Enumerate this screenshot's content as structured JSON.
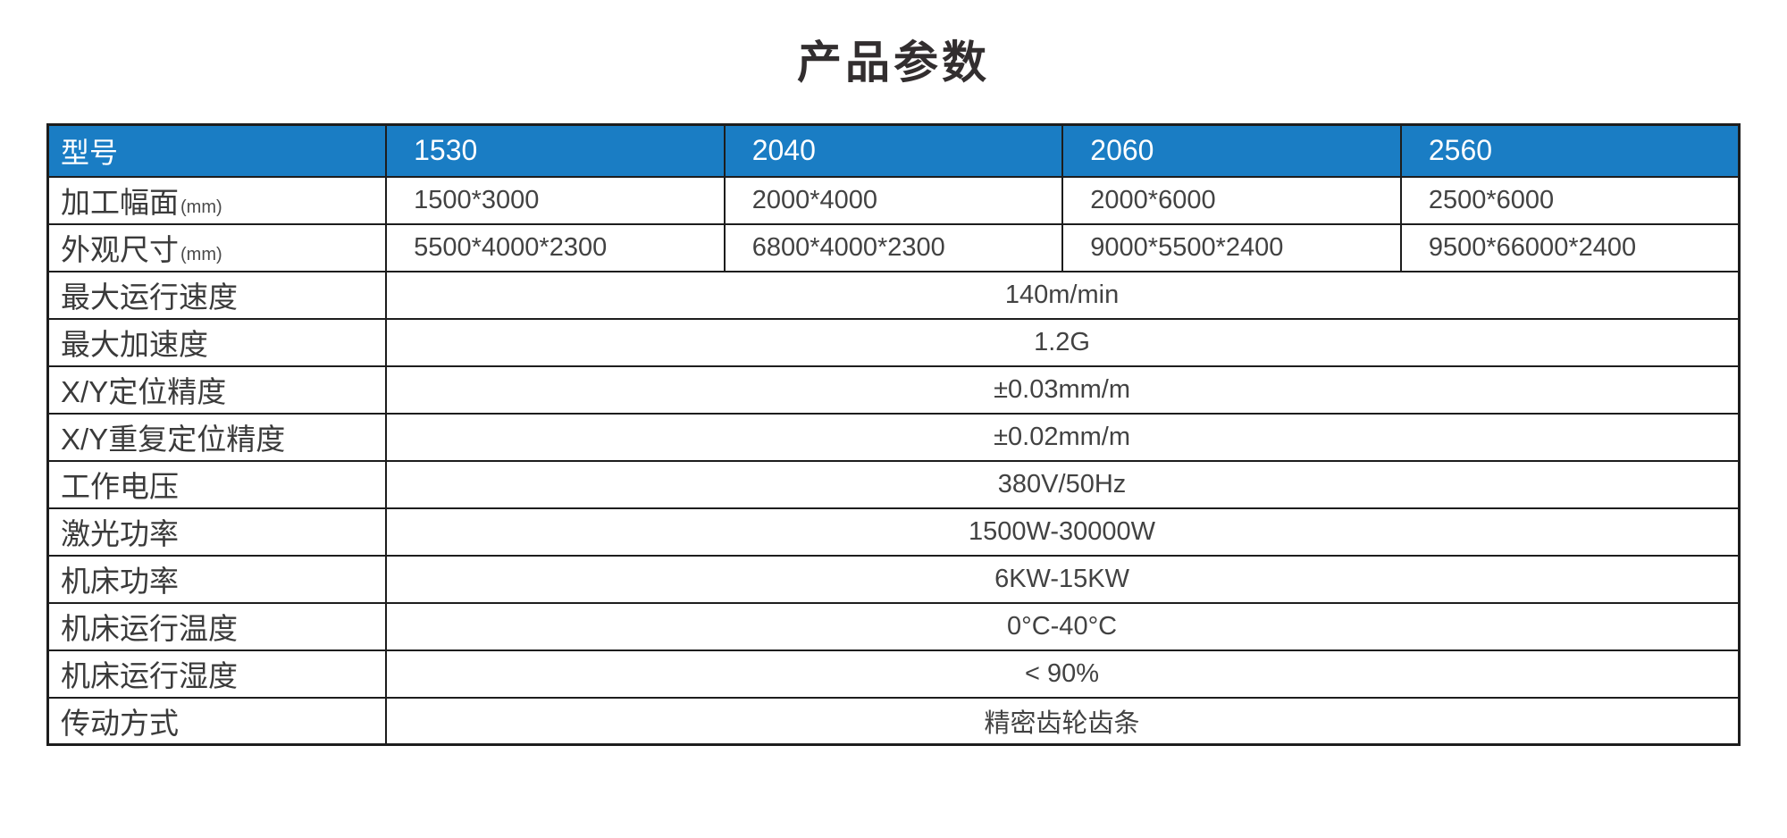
{
  "title": "产品参数",
  "accent_color": "#1a7dc4",
  "border_color": "#1d1d1d",
  "table": {
    "header": {
      "model_label": "型号",
      "models": [
        "1530",
        "2040",
        "2060",
        "2560"
      ]
    },
    "multi_rows": [
      {
        "label": "加工幅面",
        "unit": "(mm)",
        "values": [
          "1500*3000",
          "2000*4000",
          "2000*6000",
          "2500*6000"
        ]
      },
      {
        "label": "外观尺寸",
        "unit": "(mm)",
        "values": [
          "5500*4000*2300",
          "6800*4000*2300",
          "9000*5500*2400",
          "9500*66000*2400"
        ]
      }
    ],
    "span_rows": [
      {
        "label": "最大运行速度",
        "value": "140m/min"
      },
      {
        "label": "最大加速度",
        "value": "1.2G"
      },
      {
        "label": "X/Y定位精度",
        "value": "±0.03mm/m"
      },
      {
        "label": "X/Y重复定位精度",
        "value": "±0.02mm/m"
      },
      {
        "label": "工作电压",
        "value": "380V/50Hz"
      },
      {
        "label": "激光功率",
        "value": "1500W-30000W"
      },
      {
        "label": "机床功率",
        "value": "6KW-15KW"
      },
      {
        "label": "机床运行温度",
        "value": "0°C-40°C"
      },
      {
        "label": "机床运行湿度",
        "value": "< 90%"
      },
      {
        "label": "传动方式",
        "value": "精密齿轮齿条"
      }
    ]
  }
}
